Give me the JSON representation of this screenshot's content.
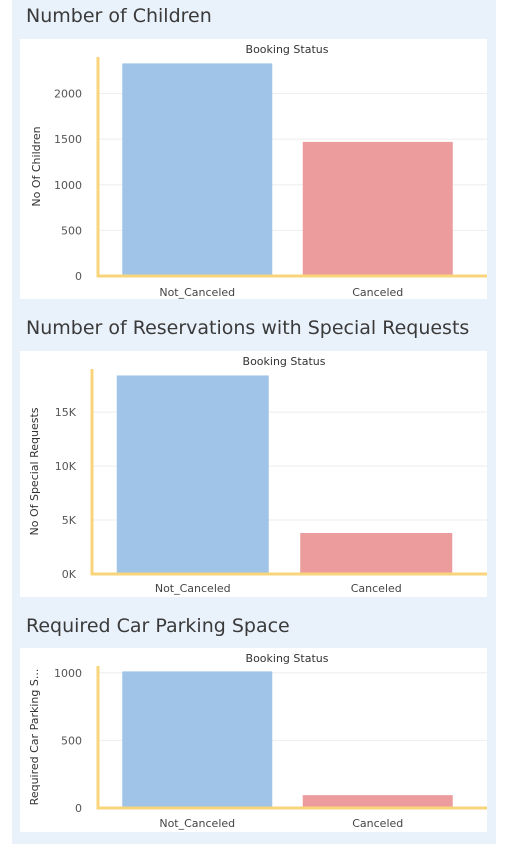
{
  "dashboard": {
    "sections": [
      {
        "title": "Number of Children",
        "chart_data": {
          "type": "bar",
          "title": "Booking Status",
          "xlabel": "",
          "ylabel": "No Of Children",
          "categories": [
            "Not_Canceled",
            "Canceled"
          ],
          "values": [
            2330,
            1470
          ],
          "ylim": [
            0,
            2400
          ],
          "yticks": [
            0,
            500,
            1000,
            1500,
            2000
          ],
          "yticklabels": [
            "0",
            "500",
            "1000",
            "1500",
            "2000"
          ],
          "colors": [
            "#a0c4e8",
            "#ec9c9c"
          ],
          "axis_color": "#f8d57a",
          "grid": true
        }
      },
      {
        "title": "Number of Reservations with Special Requests",
        "chart_data": {
          "type": "bar",
          "title": "Booking Status",
          "xlabel": "",
          "ylabel": "No Of Special Requests",
          "categories": [
            "Not_Canceled",
            "Canceled"
          ],
          "values": [
            18400,
            3800
          ],
          "ylim": [
            0,
            19000
          ],
          "yticks": [
            0,
            5000,
            10000,
            15000
          ],
          "yticklabels": [
            "0K",
            "5K",
            "10K",
            "15K"
          ],
          "colors": [
            "#a0c4e8",
            "#ec9c9c"
          ],
          "axis_color": "#f8d57a",
          "grid": true
        }
      },
      {
        "title": "Required Car Parking Space",
        "chart_data": {
          "type": "bar",
          "title": "Booking Status",
          "xlabel": "",
          "ylabel": "Required Car Parking S...",
          "categories": [
            "Not_Canceled",
            "Canceled"
          ],
          "values": [
            1010,
            95
          ],
          "ylim": [
            0,
            1050
          ],
          "yticks": [
            0,
            500,
            1000
          ],
          "yticklabels": [
            "0",
            "500",
            "1000"
          ],
          "colors": [
            "#a0c4e8",
            "#ec9c9c"
          ],
          "axis_color": "#f8d57a",
          "grid": true
        }
      }
    ]
  }
}
